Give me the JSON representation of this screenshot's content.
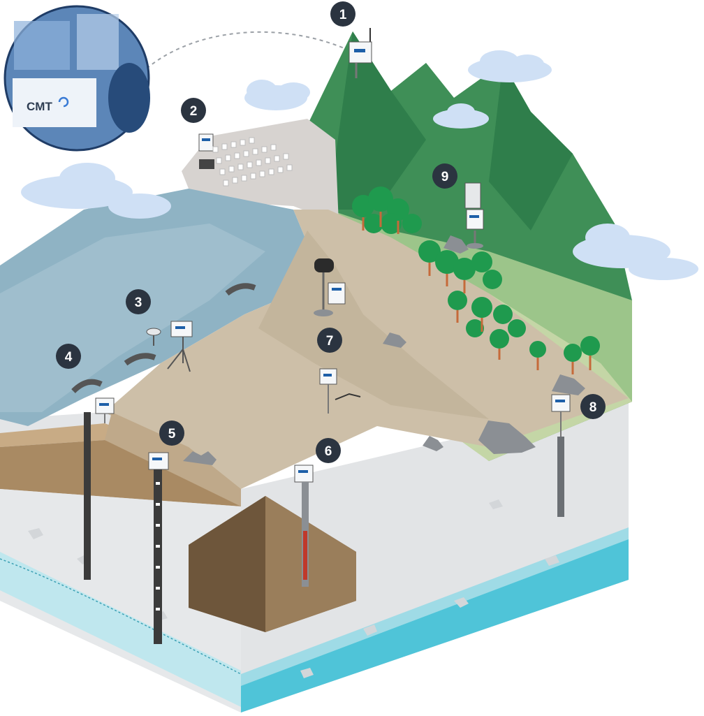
{
  "colors": {
    "marker_fill": "#2b3440",
    "marker_text": "#ffffff",
    "mountain_dark": "#2f7e4b",
    "mountain_light": "#8fbf7a",
    "water": "#8fb3c4",
    "groundwater": "#4fc4d8",
    "tailings": "#cdbfa8",
    "rock_face": "#e4e6e8",
    "device_white": "#f5f7f9",
    "device_blue": "#1d5fa8"
  },
  "inset": {
    "logo_text": "CMT"
  },
  "markers": [
    {
      "label": "1",
      "device": "gateway-station"
    },
    {
      "label": "2",
      "device": "rock-wall-sensor-array"
    },
    {
      "label": "3",
      "device": "pond-level-station"
    },
    {
      "label": "4",
      "device": "pipe-discharge-sensor"
    },
    {
      "label": "5",
      "device": "in-place-inclinometer"
    },
    {
      "label": "6",
      "device": "piezometer-borehole"
    },
    {
      "label": "7",
      "device": "tiltmeter-node"
    },
    {
      "label": "8",
      "device": "groundwater-well"
    },
    {
      "label": "9",
      "device": "weather-station"
    }
  ]
}
